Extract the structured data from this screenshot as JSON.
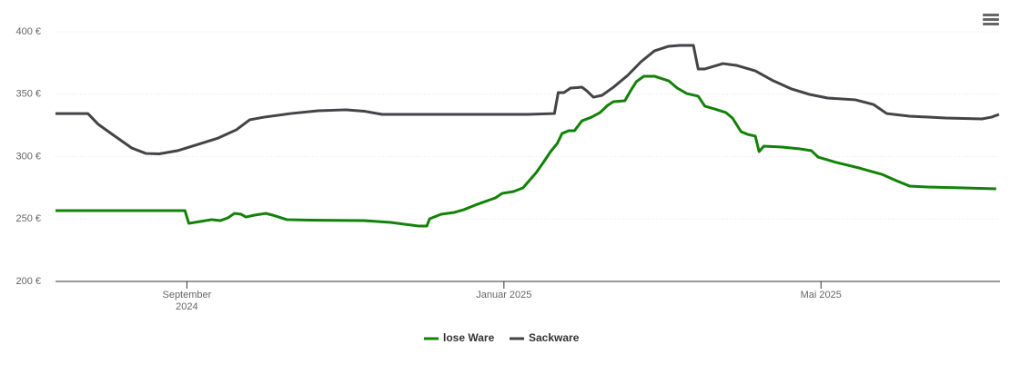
{
  "chart_data": {
    "type": "line",
    "series": [
      {
        "name": "lose Ware",
        "color": "#118207",
        "x": [
          2024.529,
          2024.665,
          2024.669,
          2024.681,
          2024.693,
          2024.702,
          2024.71,
          2024.717,
          2024.724,
          2024.729,
          2024.738,
          2024.75,
          2024.757,
          2024.772,
          2024.796,
          2024.853,
          2024.881,
          2024.91,
          2024.919,
          2024.922,
          2024.934,
          2024.948,
          2024.958,
          2024.972,
          2024.991,
          2024.998,
          2025.01,
          2025.02,
          2025.034,
          2025.042,
          2025.049,
          2025.056,
          2025.061,
          2025.068,
          2025.074,
          2025.082,
          2025.092,
          2025.101,
          2025.109,
          2025.115,
          2025.127,
          2025.133,
          2025.139,
          2025.147,
          2025.158,
          2025.173,
          2025.182,
          2025.192,
          2025.204,
          2025.211,
          2025.221,
          2025.233,
          2025.24,
          2025.249,
          2025.256,
          2025.264,
          2025.268,
          2025.273,
          2025.292,
          2025.311,
          2025.323,
          2025.33,
          2025.349,
          2025.373,
          2025.397,
          2025.412,
          2025.426,
          2025.445,
          2025.483,
          2025.517
        ],
        "values": [
          256.7,
          256.7,
          246.5,
          248,
          249.5,
          248.7,
          250.9,
          254.5,
          253.8,
          251.6,
          253.1,
          254.5,
          253.1,
          249.5,
          249.1,
          248.7,
          247.3,
          244.4,
          244.4,
          250.2,
          253.8,
          255.3,
          257.5,
          261.8,
          266.9,
          270.5,
          272,
          274.9,
          287.3,
          296,
          304,
          310.5,
          318.5,
          320.7,
          320.7,
          328.7,
          331.6,
          335.3,
          341.1,
          344,
          344.7,
          352.7,
          360,
          364.4,
          364.4,
          360.7,
          354.9,
          350.5,
          348.4,
          340.4,
          338.2,
          335.3,
          330.9,
          320,
          317.8,
          316.4,
          304,
          308.4,
          307.6,
          306.2,
          304.7,
          299.6,
          295.3,
          290.9,
          285.8,
          280.7,
          276.4,
          275.6,
          274.9,
          274.2
        ]
      },
      {
        "name": "Sackware",
        "color": "#434348",
        "x": [
          2024.529,
          2024.563,
          2024.574,
          2024.59,
          2024.609,
          2024.624,
          2024.638,
          2024.657,
          2024.676,
          2024.7,
          2024.719,
          2024.733,
          2024.748,
          2024.776,
          2024.805,
          2024.834,
          2024.853,
          2024.872,
          2024.91,
          2024.967,
          2025.025,
          2025.053,
          2025.057,
          2025.063,
          2025.07,
          2025.082,
          2025.087,
          2025.094,
          2025.103,
          2025.115,
          2025.13,
          2025.144,
          2025.158,
          2025.173,
          2025.185,
          2025.199,
          2025.204,
          2025.211,
          2025.23,
          2025.244,
          2025.264,
          2025.283,
          2025.302,
          2025.321,
          2025.34,
          2025.369,
          2025.388,
          2025.402,
          2025.426,
          2025.464,
          2025.502,
          2025.512,
          2025.52
        ],
        "values": [
          334.5,
          334.5,
          325.8,
          317.1,
          306.9,
          302.5,
          302.2,
          304.7,
          309.1,
          314.9,
          321.5,
          329.5,
          331.6,
          334.5,
          336.7,
          337.5,
          336.4,
          333.8,
          333.8,
          333.8,
          333.8,
          334.5,
          351.3,
          351.3,
          354.9,
          355.6,
          352.7,
          347.6,
          349.1,
          355.6,
          365.1,
          376,
          384.7,
          388.4,
          389.1,
          389.1,
          370.2,
          370.2,
          374.5,
          373.1,
          368.7,
          360.7,
          354.2,
          349.8,
          346.9,
          345.5,
          341.8,
          334.5,
          332.4,
          330.9,
          330.2,
          331.6,
          333.8
        ]
      }
    ],
    "xlim": [
      2024.529,
      2025.521
    ],
    "xticks": [
      {
        "value": 2024.667,
        "label": "September 2024"
      },
      {
        "value": 2025,
        "label": "Januar 2025"
      },
      {
        "value": 2025.333,
        "label": "Mai 2025"
      }
    ],
    "ylim": [
      200,
      400
    ],
    "yticks": [
      {
        "value": 200,
        "label": "200 €"
      },
      {
        "value": 250,
        "label": "250 €"
      },
      {
        "value": 300,
        "label": "300 €"
      },
      {
        "value": 350,
        "label": "350 €"
      },
      {
        "value": 400,
        "label": "400 €"
      }
    ],
    "grid": true
  }
}
